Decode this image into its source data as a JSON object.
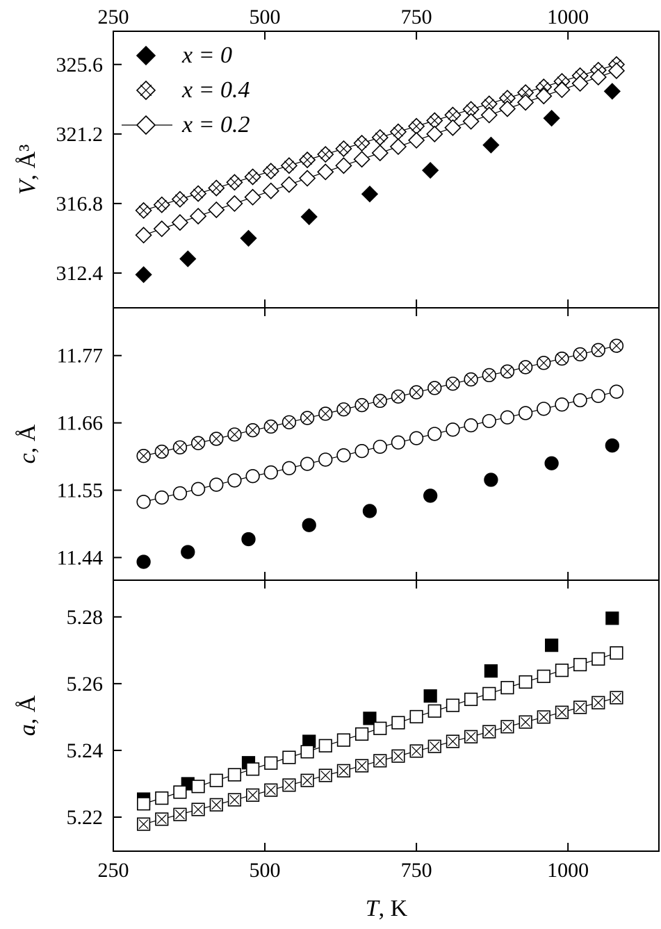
{
  "chart_data": {
    "type": "scatter",
    "xlabel": "T, K",
    "xlabel_var": "T",
    "xlabel_unit": ", K",
    "xlim": [
      250,
      1150
    ],
    "xticks": [
      250,
      500,
      750,
      1000
    ],
    "legend": {
      "placement": "top-left of top panel",
      "entries": [
        {
          "label": "x = 0",
          "marker": "filled"
        },
        {
          "label": "x = 0.4",
          "marker": "crossed"
        },
        {
          "label": "x = 0.2",
          "marker": "open with line"
        }
      ]
    },
    "x_dense": [
      300,
      330,
      360,
      390,
      420,
      450,
      480,
      510,
      540,
      570,
      600,
      630,
      660,
      690,
      720,
      750,
      780,
      810,
      840,
      870,
      900,
      930,
      960,
      990,
      1020,
      1050,
      1080
    ],
    "x_sparse": [
      300,
      373,
      473,
      573,
      673,
      773,
      873,
      973,
      1073
    ],
    "panels": [
      {
        "ylabel": "V, Å³",
        "ylabel_var": "V",
        "ylabel_unit": ", Å³",
        "ylim": [
          310.2,
          327.7
        ],
        "yticks": [
          "312.4",
          "316.8",
          "321.2",
          "325.6"
        ],
        "shape": "diamond",
        "series": [
          {
            "name": "x = 0",
            "style": "filled",
            "values": [
              312.3,
              313.3,
              314.6,
              315.96,
              317.4,
              318.9,
              320.5,
              322.2,
              323.9
            ]
          },
          {
            "name": "x = 0.4",
            "style": "crossed",
            "values": [
              316.36,
              316.72,
              317.07,
              317.43,
              317.78,
              318.14,
              318.49,
              318.85,
              319.2,
              319.56,
              319.91,
              320.27,
              320.62,
              320.98,
              321.34,
              321.69,
              322.05,
              322.4,
              322.76,
              323.11,
              323.47,
              323.82,
              324.18,
              324.53,
              324.89,
              325.24,
              325.6
            ]
          },
          {
            "name": "x = 0.2",
            "style": "open",
            "values": [
              314.8,
              315.2,
              315.6,
              316.0,
              316.4,
              316.8,
              317.2,
              317.6,
              318.0,
              318.4,
              318.8,
              319.2,
              319.6,
              320.0,
              320.4,
              320.8,
              321.2,
              321.6,
              322.0,
              322.4,
              322.8,
              323.2,
              323.6,
              324.0,
              324.4,
              324.8,
              325.2
            ]
          }
        ]
      },
      {
        "ylabel": "c, Å",
        "ylabel_var": "c",
        "ylabel_unit": ", Å",
        "ylim": [
          11.403,
          11.848
        ],
        "yticks": [
          "11.44",
          "11.55",
          "11.66",
          "11.77"
        ],
        "shape": "circle",
        "series": [
          {
            "name": "x = 0",
            "style": "filled",
            "values": [
              11.433,
              11.449,
              11.47,
              11.493,
              11.516,
              11.541,
              11.567,
              11.594,
              11.623
            ]
          },
          {
            "name": "x = 0.4",
            "style": "crossed",
            "values": [
              11.606,
              11.613,
              11.62,
              11.627,
              11.634,
              11.641,
              11.648,
              11.654,
              11.661,
              11.668,
              11.675,
              11.682,
              11.689,
              11.696,
              11.703,
              11.71,
              11.717,
              11.724,
              11.731,
              11.738,
              11.744,
              11.751,
              11.758,
              11.765,
              11.772,
              11.779,
              11.786
            ]
          },
          {
            "name": "x = 0.2",
            "style": "open",
            "values": [
              11.531,
              11.538,
              11.545,
              11.552,
              11.559,
              11.566,
              11.573,
              11.579,
              11.586,
              11.593,
              11.6,
              11.607,
              11.614,
              11.621,
              11.628,
              11.635,
              11.642,
              11.649,
              11.656,
              11.663,
              11.669,
              11.676,
              11.683,
              11.69,
              11.697,
              11.704,
              11.711
            ]
          }
        ]
      },
      {
        "ylabel": "a, Å",
        "ylabel_var": "a",
        "ylabel_unit": ", Å",
        "ylim": [
          5.2098,
          5.291
        ],
        "yticks": [
          "5.22",
          "5.24",
          "5.26",
          "5.28"
        ],
        "shape": "square",
        "series": [
          {
            "name": "x = 0",
            "style": "filled",
            "values": [
              5.2254,
              5.23,
              5.2363,
              5.2427,
              5.2496,
              5.2563,
              5.2638,
              5.2715,
              5.2796
            ]
          },
          {
            "name": "x = 0.4",
            "style": "crossed",
            "values": [
              5.2179,
              5.2194,
              5.2208,
              5.2223,
              5.2237,
              5.2252,
              5.2266,
              5.2281,
              5.2296,
              5.231,
              5.2325,
              5.2339,
              5.2354,
              5.2369,
              5.2383,
              5.2398,
              5.2412,
              5.2427,
              5.2441,
              5.2456,
              5.2471,
              5.2485,
              5.25,
              5.2514,
              5.2529,
              5.2543,
              5.2558
            ]
          },
          {
            "name": "x = 0.2",
            "style": "open",
            "values": [
              5.224,
              5.2257,
              5.2275,
              5.2292,
              5.231,
              5.2327,
              5.2344,
              5.2362,
              5.2379,
              5.2396,
              5.2414,
              5.2431,
              5.2449,
              5.2466,
              5.2483,
              5.2501,
              5.2518,
              5.2535,
              5.2553,
              5.257,
              5.2588,
              5.2605,
              5.2622,
              5.264,
              5.2657,
              5.2674,
              5.2692
            ]
          }
        ]
      }
    ]
  }
}
